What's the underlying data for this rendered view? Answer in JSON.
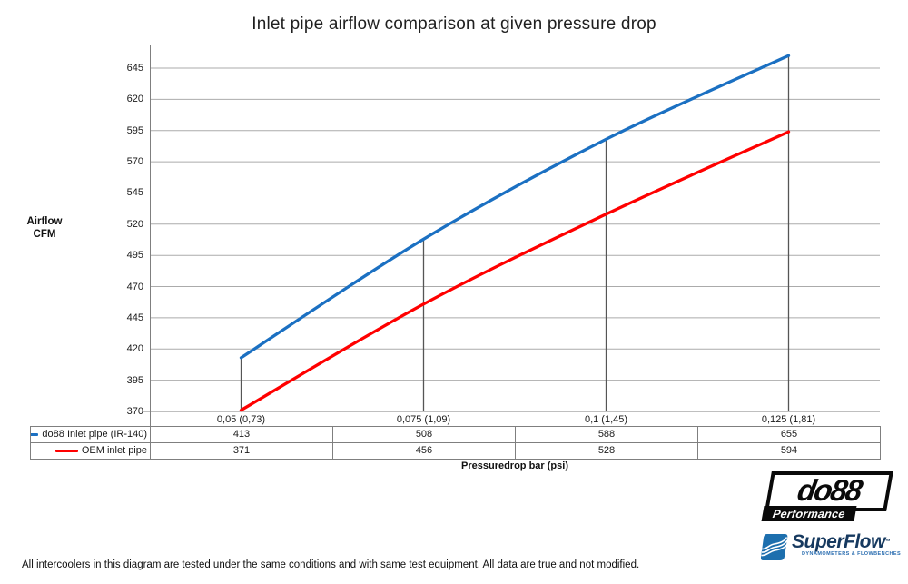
{
  "title": "Inlet pipe airflow comparison at given pressure drop",
  "footer": "All intercoolers in this diagram are tested under the same conditions and with same test equipment. All data are true and not modified.",
  "chart_data": {
    "type": "line",
    "title": "Inlet pipe airflow comparison at given pressure drop",
    "ylabel_lines": [
      "Airflow",
      "CFM"
    ],
    "xlabel": "Pressuredrop bar (psi)",
    "categories": [
      "0,05 (0,73)",
      "0,075 (1,09)",
      "0,1 (1,45)",
      "0,125 (1,81)"
    ],
    "series": [
      {
        "name": "do88 Inlet pipe (IR-140)",
        "color": "#1b70c2",
        "values": [
          413,
          508,
          588,
          655
        ]
      },
      {
        "name": "OEM inlet pipe",
        "color": "#ff0000",
        "values": [
          371,
          456,
          528,
          594
        ]
      }
    ],
    "ylim": [
      370,
      645
    ],
    "yticks": [
      370,
      395,
      420,
      445,
      470,
      495,
      520,
      545,
      570,
      595,
      620,
      645
    ],
    "grid": true,
    "drop_lines": true,
    "legend_position": "table-left",
    "line_smoothing": true
  },
  "colors": {
    "gridline": "#ababab",
    "axis": "#7f7f7f",
    "drop_line": "#555555",
    "table_border": "#7f7f7f"
  },
  "logos": {
    "do88": {
      "text": "do88",
      "subtext": "Performance"
    },
    "superflow": {
      "text": "SuperFlow",
      "tm": "™",
      "tagline": "DYNAMOMETERS & FLOWBENCHES"
    }
  }
}
